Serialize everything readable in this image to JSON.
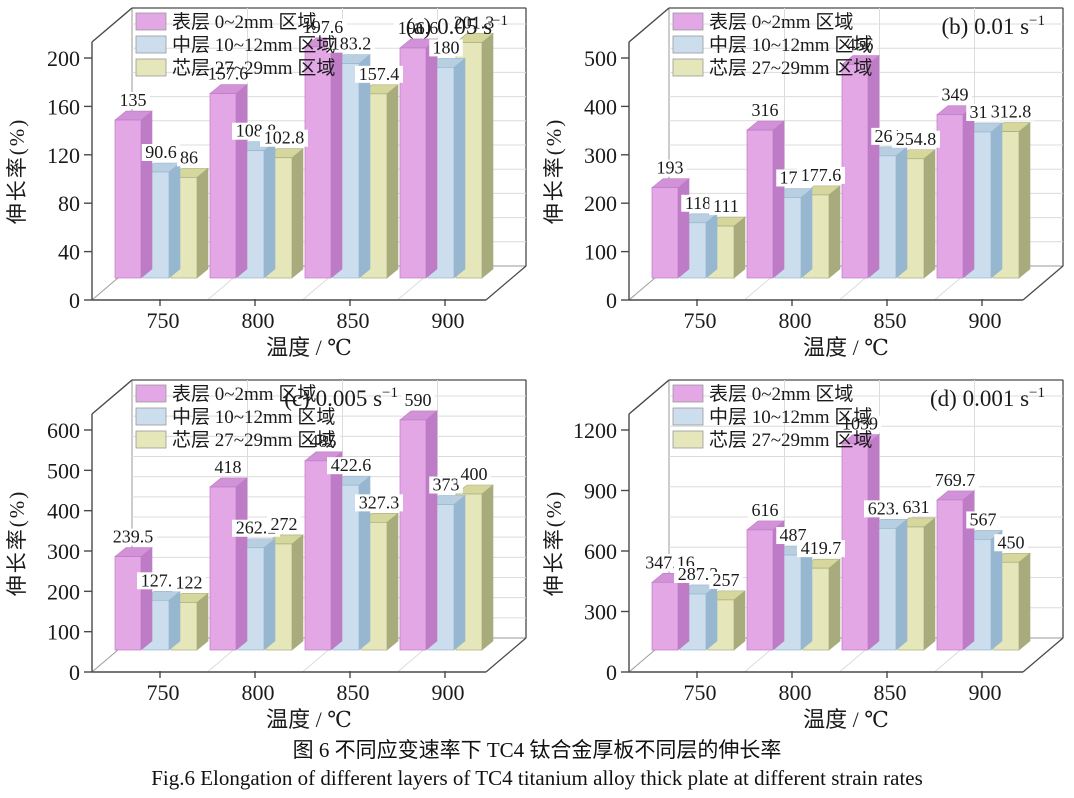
{
  "figure_caption": {
    "zh": "图 6  不同应变速率下 TC4 钛合金厚板不同层的伸长率",
    "en": "Fig.6  Elongation of different layers of TC4 titanium alloy thick plate at different strain rates"
  },
  "colors": {
    "surface": {
      "front": "#e3a7e5",
      "top": "#d292d8",
      "side": "#bd7cc5"
    },
    "middle": {
      "front": "#ccdeed",
      "top": "#b7cfe0",
      "side": "#97b6cf"
    },
    "core": {
      "front": "#e5e7bb",
      "top": "#d5d79c",
      "side": "#a8ab7c"
    },
    "axis": "#4a4a4a",
    "grid": "#dcdcdc",
    "wall": "#9a9a9a",
    "text": "#1a1a1a"
  },
  "legend_items": [
    {
      "label": "表层 0~2mm 区域",
      "color": "surface"
    },
    {
      "label": "中层 10~12mm 区域",
      "color": "middle"
    },
    {
      "label": "芯层 27~29mm 区域",
      "color": "core"
    }
  ],
  "chart_data": [
    {
      "id": "a",
      "type": "bar",
      "annotation": "(a)",
      "strain_rate": "0.05 s",
      "exponent": "−1",
      "xlabel": "温度 / ℃",
      "ylabel": "伸长率(%)",
      "ylim": [
        0,
        200
      ],
      "yticks": [
        0,
        40,
        80,
        120,
        160,
        200
      ],
      "minor_grid_step": 20,
      "categories": [
        "750",
        "800",
        "850",
        "900"
      ],
      "legend_position": "top-left",
      "series": [
        {
          "name": "表层 0~2mm 区域",
          "color": "surface",
          "values": [
            135,
            157.6,
            197.6,
            196.6
          ]
        },
        {
          "name": "中层 10~12mm 区域",
          "color": "middle",
          "values": [
            90.6,
            108.8,
            183.2,
            180
          ]
        },
        {
          "name": "芯层 27~29mm 区域",
          "color": "core",
          "values": [
            86,
            102.8,
            157.4,
            201.3
          ]
        }
      ]
    },
    {
      "id": "b",
      "type": "bar",
      "annotation": "(b)",
      "strain_rate": "0.01 s",
      "exponent": "−1",
      "xlabel": "温度 / ℃",
      "ylabel": "伸长率(%)",
      "ylim": [
        0,
        500
      ],
      "yticks": [
        0,
        100,
        200,
        300,
        400,
        500
      ],
      "minor_grid_step": 50,
      "categories": [
        "750",
        "800",
        "850",
        "900"
      ],
      "legend_position": "top-left",
      "series": [
        {
          "name": "表层 0~2mm 区域",
          "color": "surface",
          "values": [
            193,
            316,
            456,
            349
          ]
        },
        {
          "name": "中层 10~12mm 区域",
          "color": "middle",
          "values": [
            118,
            172,
            261,
            312
          ]
        },
        {
          "name": "芯层 27~29mm 区域",
          "color": "core",
          "values": [
            111,
            177.6,
            254.8,
            312.8
          ]
        }
      ]
    },
    {
      "id": "c",
      "type": "bar",
      "annotation": "(c)",
      "strain_rate": "0.005 s",
      "exponent": "−1",
      "xlabel": "温度 / ℃",
      "ylabel": "伸长率(%)",
      "ylim": [
        0,
        600
      ],
      "yticks": [
        0,
        100,
        200,
        300,
        400,
        500,
        600
      ],
      "minor_grid_step": 50,
      "categories": [
        "750",
        "800",
        "850",
        "900"
      ],
      "legend_position": "top-left",
      "series": [
        {
          "name": "表层 0~2mm 区域",
          "color": "surface",
          "values": [
            239.5,
            418,
            485,
            590
          ]
        },
        {
          "name": "中层 10~12mm 区域",
          "color": "middle",
          "values": [
            127.4,
            262.2,
            422.6,
            373
          ]
        },
        {
          "name": "芯层 27~29mm 区域",
          "color": "core",
          "values": [
            122,
            272,
            327.3,
            400
          ]
        }
      ]
    },
    {
      "id": "d",
      "type": "bar",
      "annotation": "(d)",
      "strain_rate": "0.001 s",
      "exponent": "−1",
      "xlabel": "温度 / ℃",
      "ylabel": "伸长率(%)",
      "ylim": [
        0,
        1200
      ],
      "yticks": [
        0,
        300,
        600,
        900,
        1200
      ],
      "minor_grid_step": 150,
      "categories": [
        "750",
        "800",
        "850",
        "900"
      ],
      "legend_position": "top-left",
      "series": [
        {
          "name": "表层 0~2mm 区域",
          "color": "surface",
          "values": [
            347.16,
            616,
            1059,
            769.7
          ]
        },
        {
          "name": "中层 10~12mm 区域",
          "color": "middle",
          "values": [
            287.3,
            487,
            623.8,
            567
          ]
        },
        {
          "name": "芯层 27~29mm 区域",
          "color": "core",
          "values": [
            257,
            419.7,
            631,
            450
          ]
        }
      ]
    }
  ]
}
